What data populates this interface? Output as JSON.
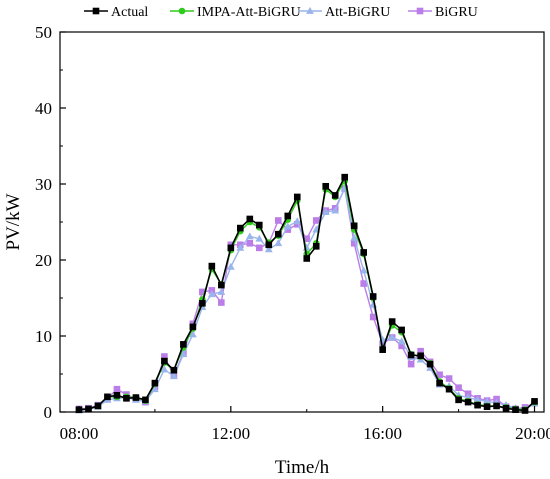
{
  "chart_data": {
    "type": "line",
    "title": "",
    "xlabel": "Time/h",
    "ylabel": "PV/kW",
    "xlim": [
      7.5,
      20.25
    ],
    "ylim": [
      0,
      50
    ],
    "x_ticks": [
      8,
      12,
      16,
      20
    ],
    "x_tick_labels": [
      "08:00",
      "12:00",
      "16:00",
      "20:00"
    ],
    "y_ticks": [
      0,
      10,
      20,
      30,
      40,
      50
    ],
    "y_tick_labels": [
      "0",
      "10",
      "20",
      "30",
      "40",
      "50"
    ],
    "grid": false,
    "legend_position": "top",
    "x": [
      8.0,
      8.25,
      8.5,
      8.75,
      9.0,
      9.25,
      9.5,
      9.75,
      10.0,
      10.25,
      10.5,
      10.75,
      11.0,
      11.25,
      11.5,
      11.75,
      12.0,
      12.25,
      12.5,
      12.75,
      13.0,
      13.25,
      13.5,
      13.75,
      14.0,
      14.25,
      14.5,
      14.75,
      15.0,
      15.25,
      15.5,
      15.75,
      16.0,
      16.25,
      16.5,
      16.75,
      17.0,
      17.25,
      17.5,
      17.75,
      18.0,
      18.25,
      18.5,
      18.75,
      19.0,
      19.25,
      19.5,
      19.75,
      20.0
    ],
    "series": [
      {
        "name": "Actual",
        "color": "#000000",
        "marker": "square",
        "values": [
          0.3,
          0.4,
          0.8,
          2.0,
          2.2,
          1.8,
          1.9,
          1.6,
          3.8,
          6.7,
          5.5,
          8.9,
          11.2,
          14.3,
          19.2,
          16.7,
          21.6,
          24.2,
          25.4,
          24.6,
          22.0,
          23.4,
          25.8,
          28.3,
          20.2,
          21.8,
          29.7,
          28.5,
          30.9,
          24.5,
          21.0,
          15.2,
          8.2,
          11.9,
          10.8,
          7.5,
          7.4,
          6.3,
          3.8,
          3.0,
          1.6,
          1.3,
          0.9,
          0.7,
          0.8,
          0.5,
          0.3,
          0.2,
          1.4
        ]
      },
      {
        "name": "IMPA-Att-BiGRU",
        "color": "#2ecc1a",
        "marker": "circle",
        "values": [
          0.3,
          0.4,
          0.8,
          2.0,
          2.0,
          2.0,
          1.9,
          1.5,
          3.7,
          6.5,
          5.5,
          8.5,
          11.0,
          14.8,
          18.8,
          16.8,
          21.3,
          23.8,
          25.0,
          24.3,
          22.3,
          23.2,
          25.3,
          27.8,
          20.8,
          22.2,
          29.3,
          28.3,
          30.4,
          24.0,
          20.8,
          15.0,
          8.4,
          11.4,
          10.5,
          7.6,
          7.3,
          6.4,
          4.0,
          3.1,
          1.8,
          1.4,
          1.0,
          0.8,
          0.8,
          0.6,
          0.4,
          0.3,
          1.3
        ]
      },
      {
        "name": "Att-BiGRU",
        "color": "#9ab4ec",
        "marker": "triangle",
        "values": [
          0.2,
          0.3,
          0.7,
          1.6,
          1.8,
          1.9,
          1.6,
          1.4,
          3.0,
          5.6,
          4.7,
          7.6,
          10.2,
          13.8,
          15.5,
          15.8,
          19.1,
          21.6,
          23.1,
          22.8,
          21.4,
          22.2,
          24.4,
          25.1,
          21.6,
          24.0,
          26.3,
          26.5,
          29.5,
          22.9,
          18.6,
          14.1,
          9.5,
          9.8,
          9.3,
          7.2,
          6.9,
          5.8,
          3.6,
          3.4,
          2.2,
          1.9,
          1.6,
          1.4,
          1.2,
          0.9,
          0.5,
          0.4,
          1.1
        ]
      },
      {
        "name": "BiGRU",
        "color": "#bb7ee8",
        "marker": "square",
        "values": [
          0.4,
          0.5,
          0.9,
          1.8,
          3.0,
          2.3,
          1.7,
          1.3,
          3.3,
          7.3,
          4.8,
          7.8,
          11.6,
          15.8,
          16.0,
          14.4,
          22.0,
          22.0,
          22.2,
          21.6,
          22.2,
          25.2,
          24.0,
          24.7,
          22.8,
          25.2,
          26.5,
          26.8,
          29.4,
          22.2,
          16.9,
          12.5,
          9.0,
          9.8,
          8.7,
          6.3,
          8.0,
          6.6,
          4.9,
          4.4,
          3.2,
          2.4,
          1.8,
          1.5,
          1.7,
          0.7,
          0.4,
          0.6,
          1.2
        ]
      }
    ]
  }
}
